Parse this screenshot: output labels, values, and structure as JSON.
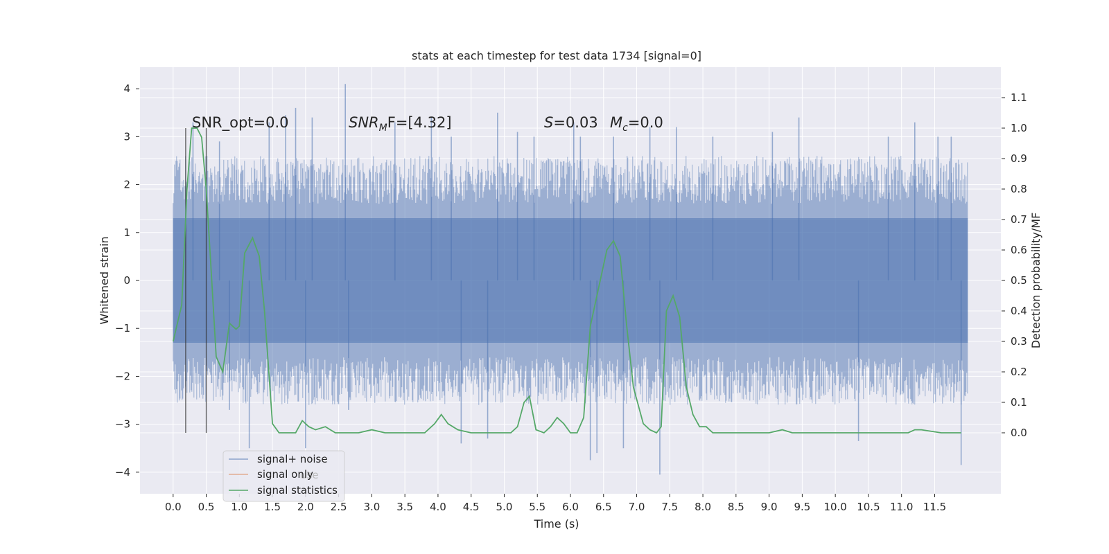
{
  "chart_data": {
    "type": "line",
    "title": "stats at each timestep for test data 1734 [signal=0]",
    "xlabel": "Time (s)",
    "ylabel_left": "Whitened strain",
    "ylabel_right": "Detection probability/MF",
    "xlim": [
      -0.5,
      12.5
    ],
    "ylim_left": [
      -4.45,
      4.45
    ],
    "ylim_right": [
      -0.2,
      1.2
    ],
    "x_ticks": [
      0.0,
      0.5,
      1.0,
      1.5,
      2.0,
      2.5,
      3.0,
      3.5,
      4.0,
      4.5,
      5.0,
      5.5,
      6.0,
      6.5,
      7.0,
      7.5,
      8.0,
      8.5,
      9.0,
      9.5,
      10.0,
      10.5,
      11.0,
      11.5
    ],
    "x_tick_labels": [
      "0.0",
      "0.5",
      "1.0",
      "1.5",
      "2.0",
      "2.5",
      "3.0",
      "3.5",
      "4.0",
      "4.5",
      "5.0",
      "5.5",
      "6.0",
      "6.5",
      "7.0",
      "7.5",
      "8.0",
      "8.5",
      "9.0",
      "9.5",
      "10.0",
      "10.5",
      "11.0",
      "11.5"
    ],
    "y_left_ticks": [
      4,
      3,
      2,
      1,
      0,
      -1,
      -2,
      -3,
      -4
    ],
    "y_left_tick_labels": [
      "4",
      "3",
      "2",
      "1",
      "0",
      "−1",
      "−2",
      "−3",
      "−4"
    ],
    "y_right_ticks": [
      1.1,
      1.0,
      0.9,
      0.8,
      0.7,
      0.6,
      0.5,
      0.4,
      0.3,
      0.2,
      0.1,
      0.0
    ],
    "y_right_tick_labels": [
      "1.1",
      "1.0",
      "0.9",
      "0.8",
      "0.7",
      "0.6",
      "0.5",
      "0.4",
      "0.3",
      "0.2",
      "0.1",
      "0.0"
    ],
    "grid": true,
    "background": "#eaeaf2",
    "annotations": {
      "snr_opt": "SNR_opt=0.0",
      "snr_mf_main": "SNR",
      "snr_mf_sub": "M",
      "snr_mf_rest": "F=[4.32]",
      "s_main": "S",
      "s_rest": "=0.03",
      "mc_main": "M",
      "mc_sub": "c",
      "mc_rest": "=0.0"
    },
    "vlines": [
      0.19,
      0.5
    ],
    "legend": {
      "placement": "lower-left",
      "entries": [
        {
          "label": "signal+ noise",
          "color": "#4c72b0"
        },
        {
          "label": "signal only",
          "color": "#dd8452"
        },
        {
          "label": "signal statistics",
          "color": "#55a868"
        }
      ],
      "ghost_text": "use"
    },
    "series": [
      {
        "name": "signal+ noise",
        "axis": "left",
        "color": "#4c72b0",
        "x_range": [
          0.0,
          12.0
        ],
        "envelope_core": 1.3,
        "envelope_typical": 2.0,
        "spikes": [
          {
            "x": 0.3,
            "y": 3.3
          },
          {
            "x": 0.7,
            "y": 2.9
          },
          {
            "x": 0.85,
            "y": -2.7
          },
          {
            "x": 1.15,
            "y": -3.5
          },
          {
            "x": 1.45,
            "y": 3.3
          },
          {
            "x": 1.7,
            "y": 3.45
          },
          {
            "x": 1.85,
            "y": 3.6
          },
          {
            "x": 2.0,
            "y": -3.5
          },
          {
            "x": 2.1,
            "y": 3.4
          },
          {
            "x": 2.6,
            "y": 4.1
          },
          {
            "x": 2.65,
            "y": -2.7
          },
          {
            "x": 3.35,
            "y": 3.3
          },
          {
            "x": 3.9,
            "y": 3.4
          },
          {
            "x": 4.2,
            "y": 3.0
          },
          {
            "x": 4.35,
            "y": -3.4
          },
          {
            "x": 4.75,
            "y": -3.3
          },
          {
            "x": 4.9,
            "y": 3.5
          },
          {
            "x": 5.2,
            "y": 3.1
          },
          {
            "x": 5.45,
            "y": 3.0
          },
          {
            "x": 6.05,
            "y": 3.3
          },
          {
            "x": 6.15,
            "y": 3.0
          },
          {
            "x": 6.3,
            "y": -3.75
          },
          {
            "x": 6.4,
            "y": -3.6
          },
          {
            "x": 6.65,
            "y": 3.0
          },
          {
            "x": 6.8,
            "y": -3.5
          },
          {
            "x": 7.2,
            "y": 3.2
          },
          {
            "x": 7.35,
            "y": -4.05
          },
          {
            "x": 7.6,
            "y": 3.2
          },
          {
            "x": 8.15,
            "y": 3.0
          },
          {
            "x": 9.05,
            "y": 3.1
          },
          {
            "x": 9.45,
            "y": 3.4
          },
          {
            "x": 10.35,
            "y": -3.35
          },
          {
            "x": 10.8,
            "y": 3.0
          },
          {
            "x": 11.2,
            "y": 3.3
          },
          {
            "x": 11.55,
            "y": 3.0
          },
          {
            "x": 11.75,
            "y": 3.0
          },
          {
            "x": 11.9,
            "y": -3.85
          }
        ]
      },
      {
        "name": "signal statistics",
        "axis": "right",
        "color": "#55a868",
        "x": [
          0.0,
          0.13,
          0.21,
          0.28,
          0.36,
          0.43,
          0.5,
          0.57,
          0.65,
          0.75,
          0.85,
          0.95,
          1.0,
          1.08,
          1.2,
          1.3,
          1.38,
          1.5,
          1.6,
          1.75,
          1.85,
          1.95,
          2.05,
          2.15,
          2.3,
          2.45,
          2.6,
          2.8,
          3.0,
          3.2,
          3.5,
          3.8,
          3.95,
          4.05,
          4.15,
          4.3,
          4.5,
          4.7,
          4.9,
          5.1,
          5.2,
          5.3,
          5.38,
          5.48,
          5.6,
          5.7,
          5.8,
          5.9,
          6.0,
          6.1,
          6.2,
          6.3,
          6.4,
          6.55,
          6.65,
          6.75,
          6.85,
          6.95,
          7.1,
          7.2,
          7.3,
          7.37,
          7.45,
          7.55,
          7.65,
          7.75,
          7.85,
          7.95,
          8.05,
          8.15,
          8.3,
          8.5,
          8.8,
          9.0,
          9.2,
          9.35,
          9.55,
          9.8,
          10.0,
          10.5,
          10.9,
          11.1,
          11.2,
          11.3,
          11.6,
          11.9
        ],
        "y": [
          0.3,
          0.42,
          0.8,
          1.0,
          1.0,
          0.97,
          0.8,
          0.55,
          0.25,
          0.2,
          0.36,
          0.34,
          0.35,
          0.59,
          0.64,
          0.58,
          0.4,
          0.03,
          0.0,
          0.0,
          0.0,
          0.04,
          0.02,
          0.01,
          0.02,
          0.0,
          0.0,
          0.0,
          0.01,
          0.0,
          0.0,
          0.0,
          0.03,
          0.06,
          0.03,
          0.01,
          0.0,
          0.0,
          0.0,
          0.0,
          0.02,
          0.1,
          0.12,
          0.01,
          0.0,
          0.02,
          0.05,
          0.03,
          0.0,
          0.0,
          0.05,
          0.35,
          0.45,
          0.6,
          0.63,
          0.58,
          0.35,
          0.15,
          0.03,
          0.01,
          0.0,
          0.02,
          0.4,
          0.45,
          0.38,
          0.15,
          0.06,
          0.02,
          0.02,
          0.0,
          0.0,
          0.0,
          0.0,
          0.0,
          0.01,
          0.0,
          0.0,
          0.0,
          0.0,
          0.0,
          0.0,
          0.0,
          0.01,
          0.01,
          0.0,
          0.0
        ]
      }
    ]
  }
}
